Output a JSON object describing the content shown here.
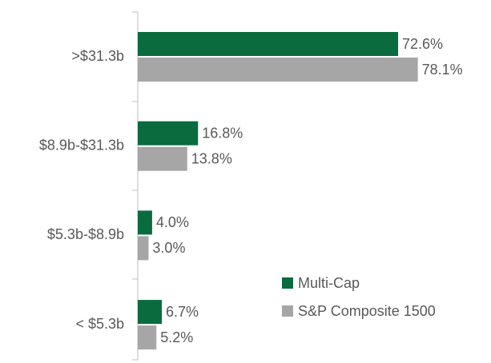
{
  "chart_data": {
    "type": "hbar",
    "categories": [
      ">$31.3b",
      "$8.9b-$31.3b",
      "$5.3b-$8.9b",
      "< $5.3b"
    ],
    "series": [
      {
        "name": "Multi-Cap",
        "color": "#0a6b3e",
        "values": [
          72.6,
          16.8,
          4.0,
          6.7
        ],
        "value_labels": [
          "72.6%",
          "16.8%",
          "4.0%",
          "6.7%"
        ]
      },
      {
        "name": "S&P Composite 1500",
        "color": "#a6a6a6",
        "values": [
          78.1,
          13.8,
          3.0,
          5.2
        ],
        "value_labels": [
          "78.1%",
          "13.8%",
          "3.0%",
          "5.2%"
        ]
      }
    ],
    "legend": "lower right"
  }
}
